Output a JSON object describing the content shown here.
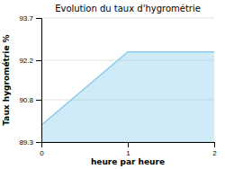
{
  "chart_data": {
    "type": "area",
    "title": "Evolution du taux d'hygrométrie",
    "xlabel": "heure par heure",
    "ylabel": "Taux hygrométrie %",
    "x": [
      0,
      1,
      2
    ],
    "values": [
      89.9,
      92.5,
      92.5
    ],
    "color": "#88ccee",
    "xlim": [
      0,
      2
    ],
    "ylim": [
      89.3,
      93.7
    ],
    "xticks": [
      0,
      1,
      2
    ],
    "yticks": [
      89.3,
      90.8,
      92.2,
      93.7
    ],
    "grid": true
  }
}
